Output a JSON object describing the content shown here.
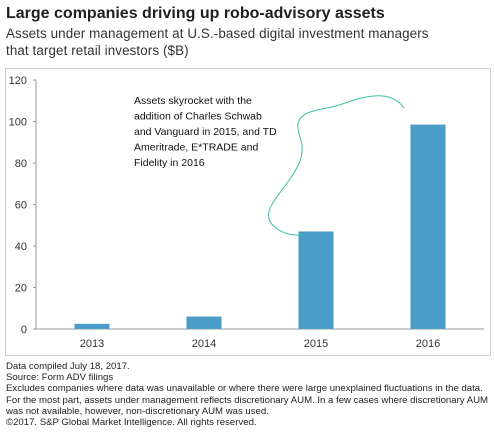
{
  "title": "Large companies driving up robo-advisory assets",
  "subtitle_line1": "Assets under management at U.S.-based digital investment managers",
  "subtitle_line2": "that target retail investors ($B)",
  "annotation_lines": [
    "Assets skyrocket with the",
    "addition of Charles Schwab",
    "and Vanguard in 2015, and TD",
    "Ameritrade, E*TRADE and",
    "Fidelity in 2016"
  ],
  "footnotes": [
    "Data compiled July 18, 2017.",
    "Source: Form ADV filings",
    "Excludes companies where data was unavailable or where there were large unexplained fluctuations in the data.",
    "For the most part, assets under management reflects discretionary AUM. In a few cases where discretionary AUM was not available, however, non-discretionary AUM was used.",
    "©2017. S&P Global Market Intelligence. All rights reserved."
  ],
  "colors": {
    "bar": "#4a9cc9",
    "annotation_curve": "#3bbfa8",
    "axis": "#999999"
  },
  "chart_data": {
    "type": "bar",
    "categories": [
      "2013",
      "2014",
      "2015",
      "2016"
    ],
    "values": [
      2.5,
      6,
      47,
      98.5
    ],
    "title": "Large companies driving up robo-advisory assets",
    "xlabel": "",
    "ylabel": "",
    "ylim": [
      0,
      120
    ],
    "yticks": [
      0,
      20,
      40,
      60,
      80,
      100,
      120
    ],
    "grid": false,
    "legend": "none"
  }
}
